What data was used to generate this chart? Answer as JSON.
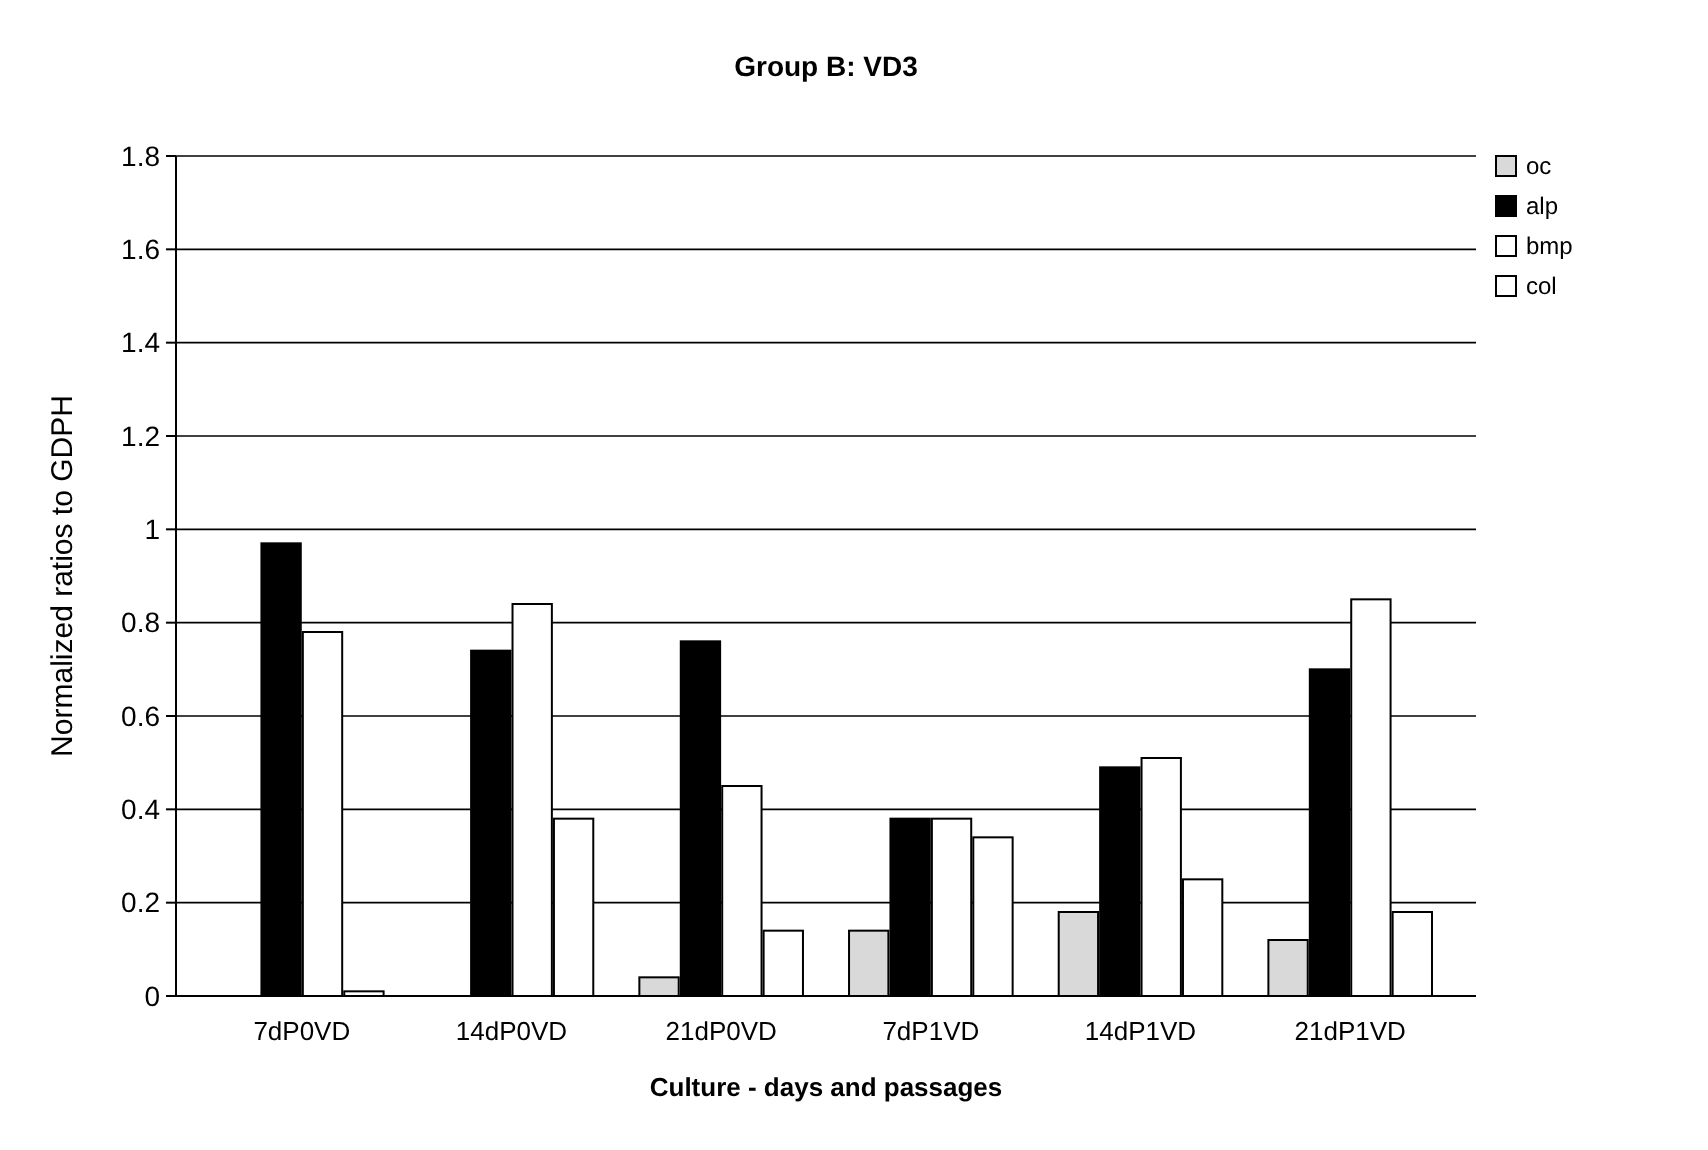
{
  "chart_data": {
    "type": "bar",
    "title": "Group B: VD3",
    "xlabel": "Culture - days and passages",
    "ylabel": "Normalized ratios to GDPH",
    "categories": [
      "7dP0VD",
      "14dP0VD",
      "21dP0VD",
      "7dP1VD",
      "14dP1VD",
      "21dP1VD"
    ],
    "series": [
      {
        "name": "oc",
        "color": "#d9d9d9",
        "values": [
          0,
          0,
          0.04,
          0.14,
          0.18,
          0.12
        ]
      },
      {
        "name": "alp",
        "color": "#000000",
        "values": [
          0.97,
          0.74,
          0.76,
          0.38,
          0.49,
          0.7
        ]
      },
      {
        "name": "bmp",
        "color": "#ffffff",
        "values": [
          0.78,
          0.84,
          0.45,
          0.38,
          0.51,
          0.85
        ]
      },
      {
        "name": "col",
        "color": "#ffffff",
        "values": [
          0.01,
          0.38,
          0.14,
          0.34,
          0.25,
          0.18
        ]
      }
    ],
    "ylim": [
      0,
      1.8
    ],
    "yticks": [
      0,
      0.2,
      0.4,
      0.6,
      0.8,
      1,
      1.2,
      1.4,
      1.6,
      1.8
    ],
    "grid": "y",
    "legend": "top right"
  }
}
